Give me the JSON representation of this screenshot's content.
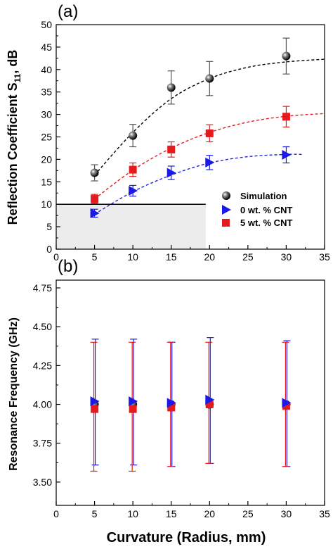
{
  "chart_data": [
    {
      "panel": "(a)",
      "type": "scatter",
      "ylabel_main": "Reflection Coefficient S",
      "ylabel_sub": "11",
      "ylabel_suffix": ", dB",
      "xlim": [
        0,
        35
      ],
      "ylim": [
        0,
        50
      ],
      "xticks": [
        "0",
        "5",
        "10",
        "15",
        "20",
        "25",
        "30",
        "35"
      ],
      "yticks": [
        "0",
        "5",
        "10",
        "15",
        "20",
        "25",
        "30",
        "35",
        "40",
        "45",
        "50"
      ],
      "threshold": {
        "y": 10,
        "x_end": 19.5,
        "shaded": true
      },
      "legend": {
        "placement": "bottom-right",
        "entries": [
          "Simulation",
          "0 wt. % CNT",
          "5 wt. % CNT"
        ]
      },
      "series": [
        {
          "name": "Simulation",
          "color": "#111111",
          "marker": "sphere",
          "x": [
            5,
            10,
            15,
            20,
            30
          ],
          "y": [
            17.0,
            25.3,
            36.0,
            38.0,
            43.0
          ],
          "err": [
            1.8,
            2.5,
            3.7,
            3.8,
            4.0
          ],
          "fit": [
            [
              5,
              16.5
            ],
            [
              10,
              26
            ],
            [
              15,
              33.5
            ],
            [
              20,
              38
            ],
            [
              25,
              40.5
            ],
            [
              30,
              41.7
            ],
            [
              35,
              42.3
            ]
          ],
          "fit_color": "#000000"
        },
        {
          "name": "0 wt. % CNT",
          "color": "#1a1ae6",
          "marker": "triangle-right",
          "x": [
            5,
            10,
            15,
            20,
            30
          ],
          "y": [
            8.0,
            13.0,
            17.0,
            19.3,
            21.0
          ],
          "err": [
            0.9,
            1.2,
            1.5,
            1.6,
            1.8
          ],
          "fit": [
            [
              5,
              7.8
            ],
            [
              10,
              12.8
            ],
            [
              15,
              16.5
            ],
            [
              20,
              19.2
            ],
            [
              25,
              20.6
            ],
            [
              30,
              21.1
            ],
            [
              32,
              21.1
            ]
          ],
          "fit_color": "#2020e0"
        },
        {
          "name": "5 wt. % CNT",
          "color": "#e41a1c",
          "marker": "square",
          "x": [
            5,
            10,
            15,
            20,
            30
          ],
          "y": [
            11.2,
            17.7,
            22.2,
            25.8,
            29.5
          ],
          "err": [
            1.0,
            1.5,
            1.7,
            1.9,
            2.3
          ],
          "fit": [
            [
              5,
              11.2
            ],
            [
              10,
              17.6
            ],
            [
              15,
              22.5
            ],
            [
              20,
              26.0
            ],
            [
              25,
              28.3
            ],
            [
              30,
              29.6
            ],
            [
              35,
              30.2
            ]
          ],
          "fit_color": "#e41a1c"
        }
      ]
    },
    {
      "panel": "(b)",
      "type": "scatter",
      "ylabel": "Resonance Frequency (GHz)",
      "xlabel": "Curvature (Radius, mm)",
      "xlim": [
        0,
        35
      ],
      "ylim": [
        3.35,
        4.8
      ],
      "xticks": [
        "0",
        "5",
        "10",
        "15",
        "20",
        "25",
        "30",
        "35"
      ],
      "yticks": [
        "3.50",
        "3.75",
        "4.00",
        "4.25",
        "4.50",
        "4.75"
      ],
      "series": [
        {
          "name": "Simulation",
          "color": "#111111",
          "marker": "sphere",
          "x": [
            5,
            10,
            15,
            20,
            30
          ],
          "y": [
            4.0,
            4.0,
            4.0,
            4.0,
            4.0
          ],
          "err_low": [
            0,
            0,
            0,
            0,
            0
          ],
          "err_high": [
            0,
            0,
            0,
            0,
            0
          ]
        },
        {
          "name": "0 wt. % CNT",
          "color": "#1a1ae6",
          "marker": "triangle-right",
          "x": [
            5,
            10,
            15,
            20,
            30
          ],
          "y": [
            4.02,
            4.02,
            4.01,
            4.03,
            4.01
          ],
          "err_low": [
            0.41,
            0.41,
            0.41,
            0.41,
            0.41
          ],
          "err_high": [
            0.4,
            0.4,
            0.39,
            0.4,
            0.4
          ]
        },
        {
          "name": "5 wt. % CNT",
          "color": "#e41a1c",
          "marker": "square",
          "x": [
            5,
            10,
            15,
            20,
            30
          ],
          "y": [
            3.97,
            3.97,
            3.98,
            4.0,
            3.99
          ],
          "err_low": [
            0.4,
            0.4,
            0.38,
            0.38,
            0.39
          ],
          "err_high": [
            0.43,
            0.43,
            0.42,
            0.4,
            0.41
          ]
        }
      ]
    }
  ]
}
